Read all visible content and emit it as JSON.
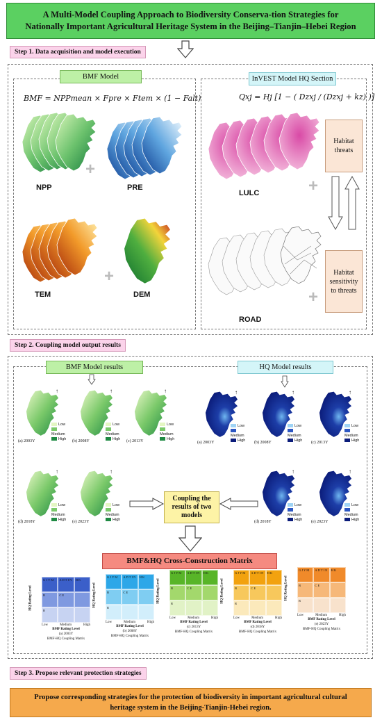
{
  "title": {
    "line1": "A Multi-Model Coupling Approach to Biodiversity Conserva-tion Strategies for",
    "line2": "Nationally Important Agricultural Heritage System in the Beijing–Tianjin–Hebei Region"
  },
  "steps": {
    "step1": "Step 1. Data acquisition and model execution",
    "step2": "Step 2. Coupling model output results",
    "step3": "Step 3. Propose relevant protection strategies"
  },
  "bmf_model": {
    "label": "BMF Model",
    "formula": "BMF = NPPmean × Fpre × Ftem × (1 − Falt)",
    "maps": [
      "NPP",
      "PRE",
      "TEM",
      "DEM"
    ]
  },
  "hq_model": {
    "label": "InVEST Model HQ Section",
    "formula": "Qxj = Hj [1 − ( Dzxj / (Dzxj + kz) )]",
    "maps": [
      "LULC",
      "ROAD"
    ],
    "box_threats": [
      "Habitat",
      "threats"
    ],
    "box_sensitivity": [
      "Habitat",
      "sensitivity",
      "to threats"
    ]
  },
  "results": {
    "bmf_label": "BMF Model results",
    "hq_label": "HQ Model results",
    "bmf_captions": [
      "(a) 2003Y",
      "(b) 2008Y",
      "(c) 2013Y",
      "(d) 2018Y",
      "(e) 2023Y"
    ],
    "hq_captions": [
      "(a) 2003Y",
      "(b) 2008Y",
      "(c) 2013Y",
      "(d) 2018Y",
      "(e) 2023Y"
    ],
    "legend": [
      "Low",
      "Medium",
      "High"
    ],
    "coupling": [
      "Coupling the",
      "results of two",
      "models"
    ]
  },
  "matrix": {
    "title": "BMF&HQ Cross-Construction Matrix",
    "ylabel": "HQ Rating Level",
    "xlabel": "BMF Rating Level",
    "levels": [
      "Low",
      "Medium",
      "High"
    ],
    "footer": "BMF-HQ Coupling Matrix",
    "captions": [
      "(a) 2003Y",
      "(b) 2008Y",
      "(c) 2013Y",
      "(d) 2018Y",
      "(e) 2023Y"
    ],
    "cells": {
      "top": [
        "G J Y M",
        "A D T I N",
        "H K"
      ],
      "mid": [
        "B",
        "C E",
        ""
      ],
      "bot": [
        "R",
        "",
        ""
      ]
    },
    "colors": [
      [
        "#3b5fc9",
        "#7f99e0",
        "#c7d3f2"
      ],
      [
        "#2da7e8",
        "#7fcdf2",
        "#d2eefb"
      ],
      [
        "#58b528",
        "#a3d86c",
        "#e1f2c6"
      ],
      [
        "#f2a20f",
        "#f7c85c",
        "#fbe9bb"
      ],
      [
        "#f08a2a",
        "#f6b879",
        "#f8e2cc"
      ]
    ]
  },
  "final_text": {
    "line1": "Propose corresponding strategies for the protection of biodiversity in important agricultural cultural",
    "line2": "heritage system in the Beijing-Tianjin-Hebei region."
  },
  "colors": {
    "title_bg": "#5bd061",
    "step_bg": "#fbd3ea",
    "bmf_label_bg": "#bdf0a6",
    "hq_label_bg": "#d4f5f8",
    "peach_box": "#fbe6d6",
    "coupling_bg": "#fdf3a6",
    "matrix_title_bg": "#f58a80",
    "final_bg": "#f5a94c"
  }
}
